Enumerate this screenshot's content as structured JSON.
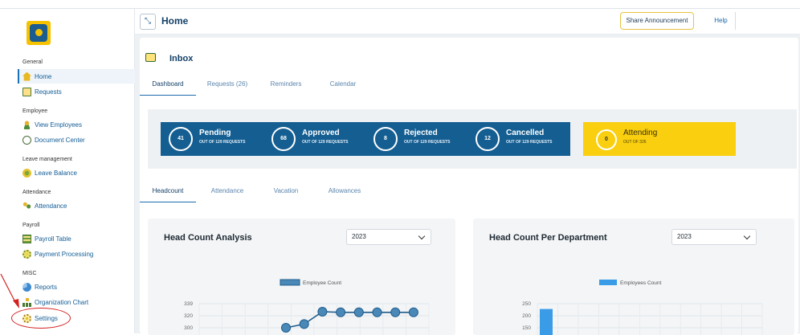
{
  "header": {
    "title": "Home",
    "announce_label": "Share Announcement",
    "help_label": "Help"
  },
  "sidebar": {
    "sections": [
      {
        "title": "General",
        "items": [
          {
            "label": "Home",
            "icon": "home-icon"
          },
          {
            "label": "Requests",
            "icon": "requests-icon"
          }
        ]
      },
      {
        "title": "Employee",
        "items": [
          {
            "label": "View Employees",
            "icon": "employee-icon"
          },
          {
            "label": "Document Center",
            "icon": "document-search-icon"
          }
        ]
      },
      {
        "title": "Leave management",
        "items": [
          {
            "label": "Leave Balance",
            "icon": "leave-balance-icon"
          }
        ]
      },
      {
        "title": "Attendance",
        "items": [
          {
            "label": "Attendance",
            "icon": "attendance-icon"
          }
        ]
      },
      {
        "title": "Payroll",
        "items": [
          {
            "label": "Payroll Table",
            "icon": "payroll-table-icon"
          },
          {
            "label": "Payment Processing",
            "icon": "payment-icon"
          }
        ]
      },
      {
        "title": "MISC",
        "items": [
          {
            "label": "Reports",
            "icon": "pie-chart-icon"
          },
          {
            "label": "Organization Chart",
            "icon": "org-chart-icon"
          },
          {
            "label": "Settings",
            "icon": "settings-icon"
          }
        ]
      }
    ]
  },
  "inbox": {
    "title": "Inbox",
    "tabs": [
      "Dashboard",
      "Requests (26)",
      "Reminders",
      "Calendar"
    ],
    "stats": [
      {
        "value": "41",
        "label": "Pending",
        "sub": "OUT OF 129 REQUESTS"
      },
      {
        "value": "68",
        "label": "Approved",
        "sub": "OUT OF 129 REQUESTS"
      },
      {
        "value": "8",
        "label": "Rejected",
        "sub": "OUT OF 129 REQUESTS"
      },
      {
        "value": "12",
        "label": "Cancelled",
        "sub": "OUT OF 129 REQUESTS"
      }
    ],
    "attending": {
      "value": "0",
      "label": "Attending",
      "sub": "OUT OF 326"
    }
  },
  "sub_tabs": [
    "Headcount",
    "Attendance",
    "Vacation",
    "Allowances"
  ],
  "colors": {
    "primary": "#145e92",
    "accent": "#f9cf0f",
    "annotation": "#d42020"
  },
  "chart_data": [
    {
      "type": "line",
      "title": "Head Count Analysis",
      "year_select": "2023",
      "series": [
        {
          "name": "Employee Count",
          "values": [
            300,
            306,
            326,
            325,
            325,
            325,
            325,
            325
          ]
        }
      ],
      "y_ticks": [
        "339",
        "320",
        "300"
      ]
    },
    {
      "type": "bar",
      "title": "Head Count Per Department",
      "year_select": "2023",
      "series": [
        {
          "name": "Employees Count",
          "values": [
            228
          ]
        }
      ],
      "y_ticks": [
        "250",
        "200",
        "150"
      ]
    }
  ]
}
